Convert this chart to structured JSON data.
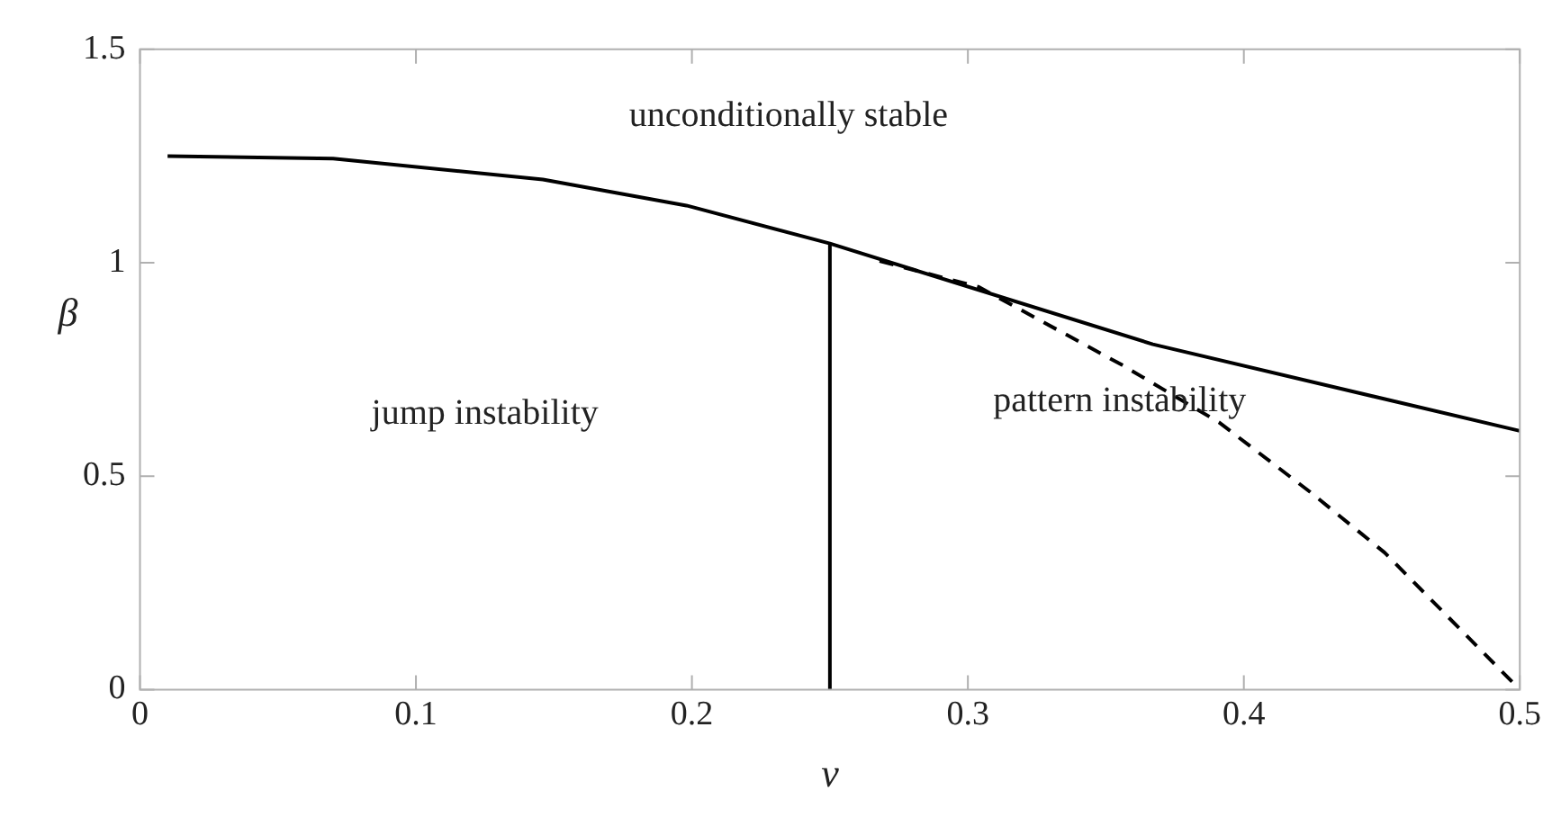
{
  "chart_data": {
    "type": "line",
    "xlabel": "ν",
    "ylabel": "β",
    "xlim": [
      0,
      0.5
    ],
    "xticks": [
      0,
      0.1,
      0.2,
      0.3,
      0.4,
      0.5
    ],
    "ylim": [
      0,
      1.5
    ],
    "yticks": [
      0,
      0.5,
      1,
      1.5
    ],
    "grid": false,
    "legend": false,
    "marker": "none",
    "annotations": [
      "unconditionally stable",
      "jump instability",
      "pattern instability"
    ],
    "series": [
      {
        "color": "#000000",
        "line_style": "solid",
        "x": [
          0.01,
          0.07,
          0.146,
          0.198,
          0.25,
          0.367,
          0.5
        ],
        "values": [
          1.25,
          1.244,
          1.195,
          1.134,
          1.045,
          0.809,
          0.606
        ]
      },
      {
        "color": "#000000",
        "line_style": "solid",
        "x": [
          0.25,
          0.25
        ],
        "values": [
          0,
          1.045
        ]
      },
      {
        "color": "#000000",
        "line_style": "dashed",
        "x": [
          0.268,
          0.304,
          0.356,
          0.391,
          0.424,
          0.451,
          0.5
        ],
        "values": [
          1.004,
          0.943,
          0.76,
          0.626,
          0.463,
          0.321,
          0
        ]
      }
    ]
  }
}
